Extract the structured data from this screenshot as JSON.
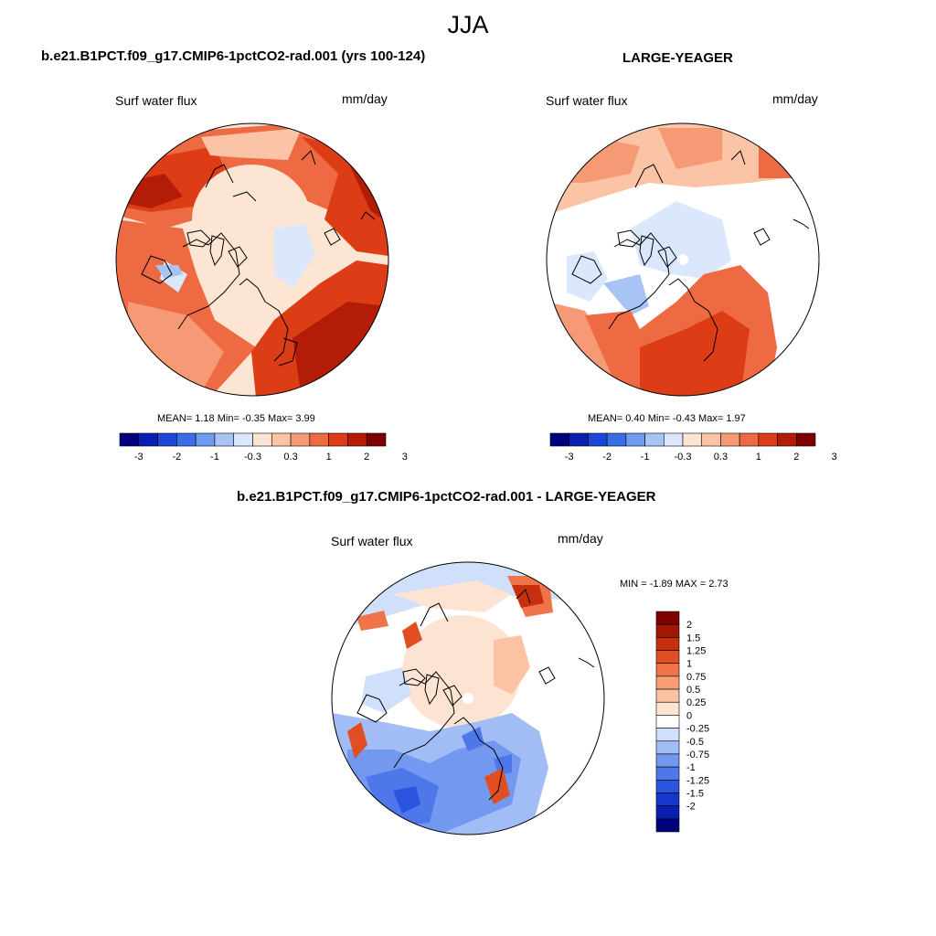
{
  "figure": {
    "supertitle": "JJA",
    "panels": [
      {
        "title": "b.e21.B1PCT.f09_g17.CMIP6-1pctCO2-rad.001 (yrs 100-124)",
        "left_label": "Surf water flux",
        "right_label": "mm/day",
        "stats_text": "MEAN=   1.18  Min=  -0.35  Max=   3.99"
      },
      {
        "title": "LARGE-YEAGER",
        "left_label": "Surf water flux",
        "right_label": "mm/day",
        "stats_text": "MEAN=   0.40  Min=  -0.43  Max=   1.97"
      },
      {
        "title": "b.e21.B1PCT.f09_g17.CMIP6-1pctCO2-rad.001 - LARGE-YEAGER",
        "left_label": "Surf water flux",
        "right_label": "mm/day",
        "stats_text": "MIN =  -1.89 MAX =   2.73"
      }
    ]
  },
  "colors": {
    "abs_bar": [
      "#00007f",
      "#0a1fb0",
      "#1f45d6",
      "#3a6ee6",
      "#6f9af0",
      "#a8c4f5",
      "#dbe8fb",
      "#fde5d3",
      "#fbc4a6",
      "#f59a74",
      "#ee6a43",
      "#dc3c16",
      "#b31d07",
      "#7f0000"
    ],
    "diff_bar": [
      "#00007f",
      "#0a1fb0",
      "#1437cc",
      "#2b55e0",
      "#4e77ea",
      "#7298f0",
      "#a2bcf5",
      "#d0e0fa",
      "#ffffff",
      "#fde4d2",
      "#fbc3a4",
      "#f79e76",
      "#f0744a",
      "#e14e24",
      "#c7300f",
      "#a01703",
      "#7f0000"
    ],
    "land_outline": "#000000"
  },
  "chart_data": [
    {
      "type": "heatmap",
      "projection": "polar-stereographic-north",
      "title": "b.e21.B1PCT.f09_g17.CMIP6-1pctCO2-rad.001 (yrs 100-124)",
      "variable": "Surf water flux",
      "units": "mm/day",
      "stats": {
        "mean": 1.18,
        "min": -0.35,
        "max": 3.99
      },
      "colorbar": {
        "orientation": "horizontal",
        "levels": [
          -3,
          -2.5,
          -2,
          -1.5,
          -1,
          -0.5,
          -0.3,
          0,
          0.3,
          0.5,
          1,
          1.5,
          2,
          2.5,
          3
        ],
        "tick_labels": [
          "-3",
          "-2",
          "-1",
          "-0.3",
          "0.3",
          "1",
          "2",
          "3"
        ]
      }
    },
    {
      "type": "heatmap",
      "projection": "polar-stereographic-north",
      "title": "LARGE-YEAGER",
      "variable": "Surf water flux",
      "units": "mm/day",
      "stats": {
        "mean": 0.4,
        "min": -0.43,
        "max": 1.97
      },
      "colorbar": {
        "orientation": "horizontal",
        "levels": [
          -3,
          -2.5,
          -2,
          -1.5,
          -1,
          -0.5,
          -0.3,
          0,
          0.3,
          0.5,
          1,
          1.5,
          2,
          2.5,
          3
        ],
        "tick_labels": [
          "-3",
          "-2",
          "-1",
          "-0.3",
          "0.3",
          "1",
          "2",
          "3"
        ]
      }
    },
    {
      "type": "heatmap",
      "projection": "polar-stereographic-north",
      "title": "b.e21.B1PCT.f09_g17.CMIP6-1pctCO2-rad.001 - LARGE-YEAGER",
      "variable": "Surf water flux",
      "units": "mm/day",
      "stats": {
        "min": -1.89,
        "max": 2.73
      },
      "colorbar": {
        "orientation": "vertical",
        "levels": [
          -2,
          -1.5,
          -1.25,
          -1,
          -0.75,
          -0.5,
          -0.25,
          0,
          0.25,
          0.5,
          0.75,
          1,
          1.25,
          1.5,
          2
        ],
        "tick_labels": [
          "2",
          "1.5",
          "1.25",
          "1",
          "0.75",
          "0.5",
          "0.25",
          "0",
          "-0.25",
          "-0.5",
          "-0.75",
          "-1",
          "-1.25",
          "-1.5",
          "-2"
        ]
      }
    }
  ]
}
